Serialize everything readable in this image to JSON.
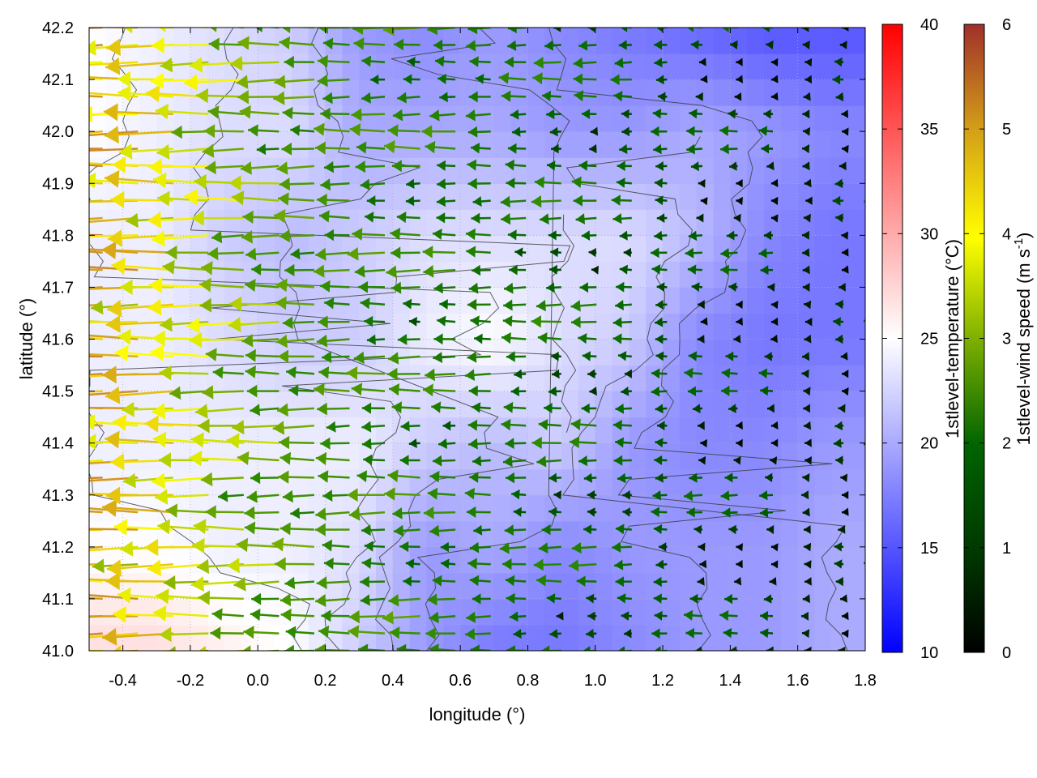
{
  "chart_data": {
    "type": "heatmap",
    "title": "",
    "xlabel": "longitude (°)",
    "ylabel": "latitude (°)",
    "xlim": [
      -0.5,
      1.8
    ],
    "ylim": [
      41.0,
      42.2
    ],
    "x_ticks": [
      "-0.4",
      "-0.2",
      "0.0",
      "0.2",
      "0.4",
      "0.6",
      "0.8",
      "1.0",
      "1.2",
      "1.4",
      "1.6",
      "1.8"
    ],
    "y_ticks": [
      "41.0",
      "41.1",
      "41.2",
      "41.3",
      "41.4",
      "41.5",
      "41.6",
      "41.7",
      "41.8",
      "41.9",
      "42.0",
      "42.1",
      "42.2"
    ],
    "grid": true,
    "temperature_colorbar": {
      "label": "1stlevel-temperature (°C)",
      "range": [
        10,
        40
      ],
      "ticks": [
        "10",
        "15",
        "20",
        "25",
        "30",
        "35",
        "40"
      ],
      "colors": [
        "#0000ff",
        "#ffffff",
        "#ff0000"
      ]
    },
    "wind_colorbar": {
      "label_main": "1stlevel-wind speed (m s",
      "label_sup": "-1",
      "label_end": ")",
      "range": [
        0,
        6
      ],
      "ticks": [
        "0",
        "1",
        "2",
        "3",
        "4",
        "5",
        "6"
      ],
      "colors": [
        "#000000",
        "#006400",
        "#2e8b00",
        "#7fb000",
        "#ffff00",
        "#d4a017",
        "#cd7f32",
        "#a0302a"
      ]
    },
    "temperature_field": {
      "description_grid": "coarse lon/lat grid of temperature in °C",
      "lon": [
        -0.5,
        -0.3,
        -0.1,
        0.1,
        0.3,
        0.5,
        0.7,
        0.9,
        1.1,
        1.3,
        1.5,
        1.7
      ],
      "lat": [
        41.0,
        41.2,
        41.4,
        41.6,
        41.8,
        42.0,
        42.2
      ],
      "values": [
        [
          27,
          27,
          26,
          25,
          22,
          19,
          17,
          17,
          18,
          19,
          19,
          20
        ],
        [
          25,
          25,
          24,
          24,
          23,
          19,
          20,
          18,
          19,
          19,
          19,
          20
        ],
        [
          24,
          24,
          24,
          24,
          24,
          22,
          21,
          22,
          19,
          18,
          18,
          19
        ],
        [
          24,
          24,
          23,
          22,
          22,
          24,
          25,
          23,
          22,
          18,
          17,
          17
        ],
        [
          24,
          24,
          22,
          21,
          22,
          23,
          23,
          23,
          23,
          21,
          18,
          17
        ],
        [
          25,
          24,
          23,
          23,
          20,
          20,
          20,
          19,
          19,
          20,
          19,
          18
        ],
        [
          25,
          24,
          23,
          22,
          19,
          18,
          19,
          18,
          17,
          16,
          15,
          15
        ]
      ]
    },
    "wind_field": {
      "units": "m s-1",
      "lon": [
        -0.5,
        -0.4,
        -0.3,
        -0.2,
        -0.1,
        0.0,
        0.1,
        0.2,
        0.3,
        0.4,
        0.5,
        0.6,
        0.7,
        0.8,
        0.9,
        1.0,
        1.1,
        1.2,
        1.3,
        1.4,
        1.5,
        1.6,
        1.7
      ],
      "lat": [
        41.0,
        41.1,
        41.2,
        41.3,
        41.4,
        41.5,
        41.6,
        41.7,
        41.8,
        41.9,
        42.0,
        42.1,
        42.2
      ],
      "speed_west": [
        4.5,
        4.2,
        4.0,
        3.5,
        3.0,
        2.5,
        2.2,
        2.0,
        1.8,
        1.6,
        1.5,
        1.4,
        1.3,
        1.2,
        1.1,
        1.0,
        0.9,
        0.8,
        0.6,
        0.5,
        0.4,
        0.3,
        0.3
      ],
      "direction_deg_from": 90
    }
  }
}
